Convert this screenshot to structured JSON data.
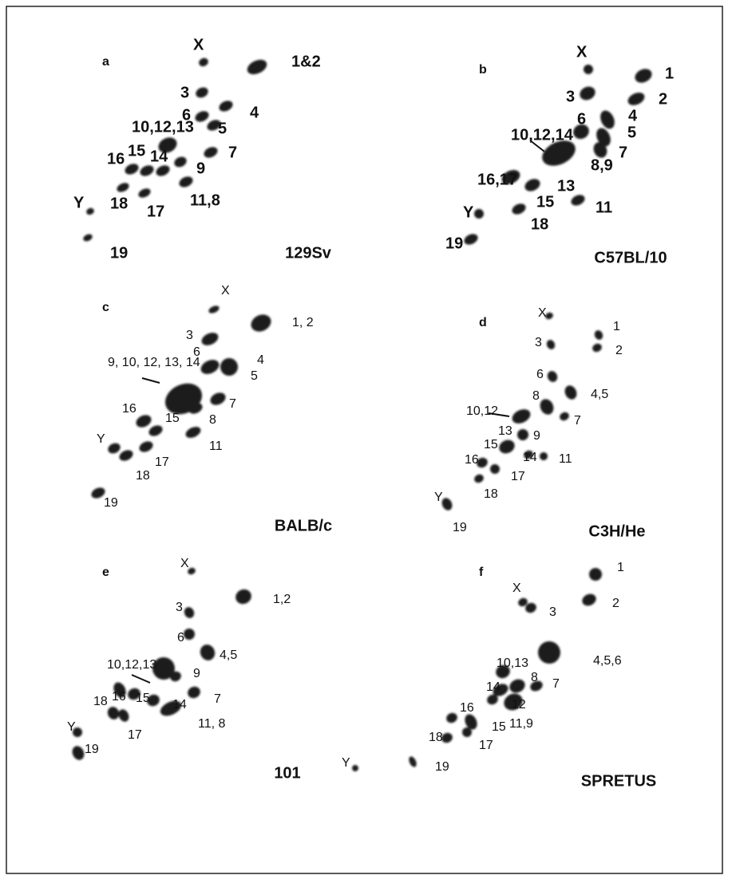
{
  "panels": [
    {
      "letter": "a",
      "strain": "129Sv",
      "labels": [
        "X",
        "1&2",
        "3",
        "6",
        "4",
        "5",
        "10,12,13",
        "7",
        "16",
        "15",
        "14",
        "9",
        "Y",
        "18",
        "17",
        "11,8",
        "19"
      ]
    },
    {
      "letter": "b",
      "strain": "C57BL/10",
      "labels": [
        "X",
        "1",
        "2",
        "3",
        "6",
        "4",
        "5",
        "7",
        "10,12,14",
        "8,9",
        "16,17",
        "13",
        "15",
        "11",
        "Y",
        "18",
        "19"
      ]
    },
    {
      "letter": "c",
      "strain": "BALB/c",
      "labels": [
        "X",
        "1, 2",
        "3",
        "6",
        "4",
        "5",
        "9, 10, 12, 13, 14",
        "7",
        "16",
        "15",
        "8",
        "Y",
        "17",
        "11",
        "18",
        "19"
      ]
    },
    {
      "letter": "d",
      "strain": "C3H/He",
      "labels": [
        "X",
        "1",
        "2",
        "3",
        "6",
        "8",
        "4,5",
        "10,12",
        "7",
        "9",
        "13",
        "15",
        "14",
        "11",
        "16",
        "17",
        "18",
        "Y",
        "19"
      ]
    },
    {
      "letter": "e",
      "strain": "101",
      "labels": [
        "X",
        "1,2",
        "3",
        "6",
        "4,5",
        "10,12,13",
        "16",
        "15",
        "9",
        "18",
        "14",
        "7",
        "17",
        "11, 8",
        "Y",
        "19",
        "Y"
      ]
    },
    {
      "letter": "f",
      "strain": "SPRETUS",
      "labels": [
        "X",
        "3",
        "1",
        "2",
        "10,13",
        "4,5,6",
        "8",
        "7",
        "14",
        "12",
        "11,9",
        "16",
        "15",
        "18",
        "17",
        "19"
      ]
    }
  ]
}
